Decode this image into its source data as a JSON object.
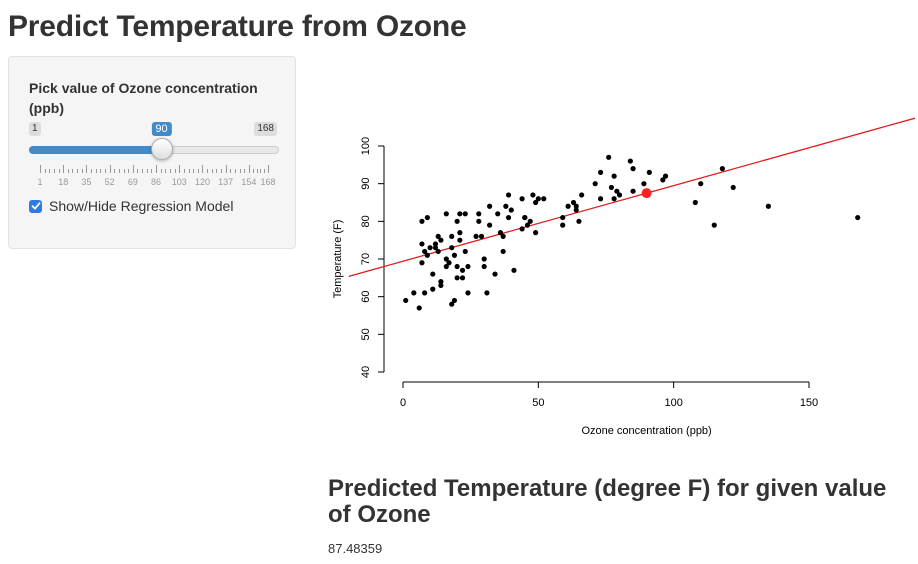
{
  "page": {
    "title": "Predict Temperature from Ozone"
  },
  "sidebar": {
    "slider": {
      "label": "Pick value of Ozone concentration (ppb)",
      "min": 1,
      "max": 168,
      "value": 90,
      "min_label": "1",
      "max_label": "168",
      "value_label": "90",
      "grid_labels": [
        "1",
        "18",
        "35",
        "52",
        "69",
        "86",
        "103",
        "120",
        "137",
        "154",
        "168"
      ],
      "grid_values": [
        1,
        18,
        35,
        52,
        69,
        86,
        103,
        120,
        137,
        154,
        168
      ]
    },
    "checkbox": {
      "label": "Show/Hide Regression Model",
      "checked": true
    }
  },
  "chart_data": {
    "type": "scatter",
    "xlabel": "Ozone concentration (ppb)",
    "ylabel": "Temperature (F)",
    "xlim": [
      0,
      168
    ],
    "ylim": [
      40,
      100
    ],
    "x_ticks": [
      "0",
      "50",
      "100",
      "150"
    ],
    "y_ticks": [
      "40",
      "50",
      "60",
      "70",
      "80",
      "90",
      "100"
    ],
    "points": [
      [
        1,
        59
      ],
      [
        4,
        61
      ],
      [
        6,
        57
      ],
      [
        7,
        69
      ],
      [
        7,
        74
      ],
      [
        7,
        80
      ],
      [
        8,
        61
      ],
      [
        8,
        72
      ],
      [
        9,
        71
      ],
      [
        9,
        81
      ],
      [
        10,
        73
      ],
      [
        11,
        66
      ],
      [
        11,
        62
      ],
      [
        12,
        73
      ],
      [
        12,
        74
      ],
      [
        13,
        72
      ],
      [
        13,
        76
      ],
      [
        14,
        64
      ],
      [
        14,
        63
      ],
      [
        14,
        75
      ],
      [
        16,
        68
      ],
      [
        16,
        70
      ],
      [
        16,
        82
      ],
      [
        17,
        69
      ],
      [
        18,
        58
      ],
      [
        18,
        73
      ],
      [
        18,
        76
      ],
      [
        19,
        71
      ],
      [
        19,
        59
      ],
      [
        20,
        65
      ],
      [
        20,
        68
      ],
      [
        20,
        80
      ],
      [
        21,
        75
      ],
      [
        21,
        82
      ],
      [
        21,
        77
      ],
      [
        22,
        67
      ],
      [
        22,
        65
      ],
      [
        23,
        72
      ],
      [
        23,
        82
      ],
      [
        24,
        61
      ],
      [
        24,
        68
      ],
      [
        27,
        76
      ],
      [
        28,
        80
      ],
      [
        28,
        82
      ],
      [
        29,
        76
      ],
      [
        30,
        70
      ],
      [
        30,
        68
      ],
      [
        31,
        61
      ],
      [
        32,
        79
      ],
      [
        32,
        84
      ],
      [
        34,
        66
      ],
      [
        35,
        82
      ],
      [
        36,
        77
      ],
      [
        37,
        72
      ],
      [
        37,
        76
      ],
      [
        38,
        84
      ],
      [
        39,
        81
      ],
      [
        39,
        87
      ],
      [
        40,
        83
      ],
      [
        41,
        67
      ],
      [
        44,
        78
      ],
      [
        44,
        86
      ],
      [
        45,
        81
      ],
      [
        45,
        81
      ],
      [
        46,
        79
      ],
      [
        47,
        80
      ],
      [
        48,
        87
      ],
      [
        49,
        85
      ],
      [
        49,
        77
      ],
      [
        50,
        86
      ],
      [
        52,
        86
      ],
      [
        59,
        81
      ],
      [
        59,
        79
      ],
      [
        61,
        84
      ],
      [
        63,
        85
      ],
      [
        64,
        84
      ],
      [
        64,
        83
      ],
      [
        65,
        80
      ],
      [
        66,
        87
      ],
      [
        71,
        90
      ],
      [
        73,
        86
      ],
      [
        73,
        93
      ],
      [
        76,
        97
      ],
      [
        77,
        89
      ],
      [
        78,
        86
      ],
      [
        78,
        92
      ],
      [
        79,
        88
      ],
      [
        80,
        87
      ],
      [
        84,
        96
      ],
      [
        85,
        94
      ],
      [
        85,
        88
      ],
      [
        89,
        90
      ],
      [
        91,
        93
      ],
      [
        96,
        91
      ],
      [
        97,
        92
      ],
      [
        108,
        85
      ],
      [
        110,
        90
      ],
      [
        115,
        79
      ],
      [
        118,
        94
      ],
      [
        122,
        89
      ],
      [
        135,
        84
      ],
      [
        168,
        81
      ]
    ],
    "regression_line": {
      "intercept": 69.41,
      "slope": 0.2008,
      "color": "#e41a1c"
    },
    "prediction_point": {
      "x": 90,
      "y": 87.48359,
      "color": "#ff2020"
    }
  },
  "result": {
    "heading": "Predicted Temperature (degree F) for given value of Ozone",
    "value": "87.48359"
  }
}
